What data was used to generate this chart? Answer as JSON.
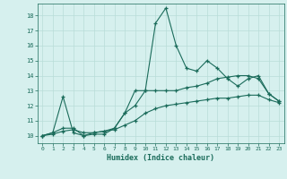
{
  "xlabel": "Humidex (Indice chaleur)",
  "bg_color": "#d6f0ee",
  "line_color": "#1a6b5a",
  "grid_color": "#b8ddd8",
  "xlim": [
    -0.5,
    23.5
  ],
  "ylim": [
    9.5,
    18.8
  ],
  "yticks": [
    10,
    11,
    12,
    13,
    14,
    15,
    16,
    17,
    18
  ],
  "xticks": [
    0,
    1,
    2,
    3,
    4,
    5,
    6,
    7,
    8,
    9,
    10,
    11,
    12,
    13,
    14,
    15,
    16,
    17,
    18,
    19,
    20,
    21,
    22,
    23
  ],
  "line1_x": [
    0,
    1,
    2,
    3,
    4,
    5,
    6,
    7,
    8,
    9,
    10,
    11,
    12,
    13,
    14,
    15,
    16,
    17,
    18,
    19,
    20,
    21,
    22,
    23
  ],
  "line1_y": [
    10.0,
    10.2,
    12.6,
    10.2,
    10.0,
    10.1,
    10.1,
    10.5,
    11.5,
    13.0,
    13.0,
    17.5,
    18.5,
    16.0,
    14.5,
    14.3,
    15.0,
    14.5,
    13.8,
    13.3,
    13.8,
    14.0,
    12.8,
    12.3
  ],
  "line2_x": [
    0,
    1,
    2,
    3,
    4,
    5,
    6,
    7,
    8,
    9,
    10,
    11,
    12,
    13,
    14,
    15,
    16,
    17,
    18,
    19,
    20,
    21,
    22,
    23
  ],
  "line2_y": [
    10.0,
    10.2,
    10.5,
    10.5,
    10.0,
    10.2,
    10.3,
    10.5,
    11.5,
    12.0,
    13.0,
    13.0,
    13.0,
    13.0,
    13.2,
    13.3,
    13.5,
    13.8,
    13.9,
    14.0,
    14.0,
    13.8,
    12.8,
    12.3
  ],
  "line3_x": [
    0,
    1,
    2,
    3,
    4,
    5,
    6,
    7,
    8,
    9,
    10,
    11,
    12,
    13,
    14,
    15,
    16,
    17,
    18,
    19,
    20,
    21,
    22,
    23
  ],
  "line3_y": [
    10.0,
    10.1,
    10.3,
    10.4,
    10.2,
    10.2,
    10.3,
    10.4,
    10.7,
    11.0,
    11.5,
    11.8,
    12.0,
    12.1,
    12.2,
    12.3,
    12.4,
    12.5,
    12.5,
    12.6,
    12.7,
    12.7,
    12.4,
    12.2
  ]
}
